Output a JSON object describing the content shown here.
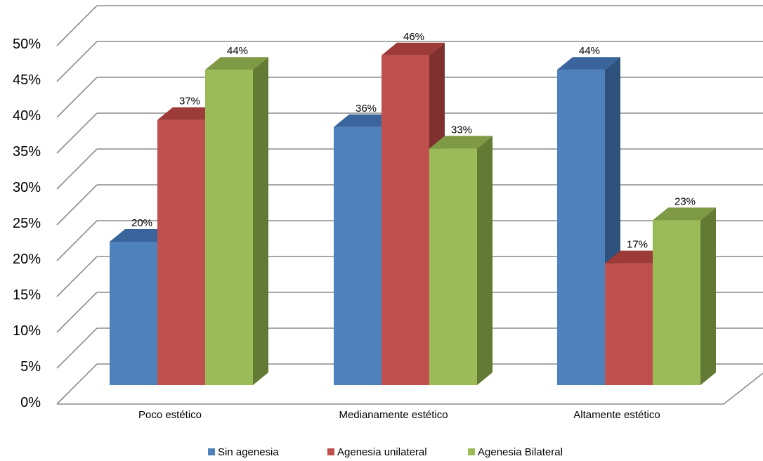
{
  "chart_data": {
    "type": "bar",
    "categories": [
      "Poco estético",
      "Medianamente estético",
      "Altamente estético"
    ],
    "series": [
      {
        "name": "Sin agenesia",
        "values": [
          20,
          36,
          44
        ],
        "color": "#4F81BD",
        "side": "#2F527D",
        "top": "#3A659C"
      },
      {
        "name": "Agenesia unilateral",
        "values": [
          37,
          46,
          17
        ],
        "color": "#C0504D",
        "side": "#7F302E",
        "top": "#9D3B38"
      },
      {
        "name": "Agenesia Bilateral",
        "values": [
          44,
          33,
          23
        ],
        "color": "#9BBB59",
        "side": "#637A34",
        "top": "#7F9A45"
      }
    ],
    "yticks": [
      "0%",
      "5%",
      "10%",
      "15%",
      "20%",
      "25%",
      "30%",
      "35%",
      "40%",
      "45%",
      "50%"
    ],
    "data_labels": [
      [
        "20%",
        "36%",
        "44%"
      ],
      [
        "37%",
        "46%",
        "17%"
      ],
      [
        "44%",
        "33%",
        "23%"
      ]
    ],
    "ylim": [
      0,
      50
    ],
    "grid": true,
    "legend_position": "bottom",
    "title": "",
    "xlabel": "",
    "ylabel": ""
  }
}
